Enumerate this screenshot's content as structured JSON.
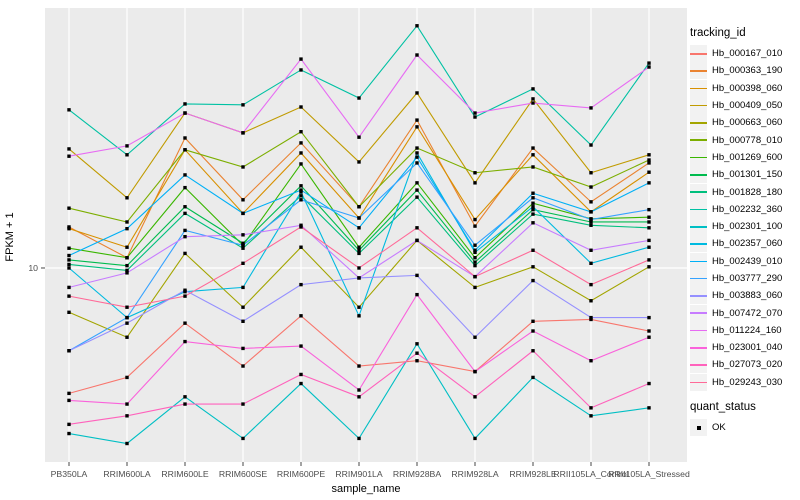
{
  "chart_data": {
    "type": "line",
    "title": "",
    "xlabel": "sample_name",
    "ylabel": "FPKM + 1",
    "y_scale": "log10",
    "ylim": [
      1.97,
      88.2
    ],
    "y_ticks": [
      10
    ],
    "y_tick_labels": [
      "10"
    ],
    "grid": true,
    "panel_bg": "#EBEBEB",
    "grid_color": "#FFFFFF",
    "point_marker": "square",
    "point_color": "#000000",
    "legend_position": "right",
    "legend_title": "tracking_id",
    "categories": [
      "PB350LA",
      "RRIM600LA",
      "RRIM600LE",
      "RRIM600SE",
      "RRIM600PE",
      "RRIM901LA",
      "RRIM928BA",
      "RRIM928LA",
      "RRIM928LE",
      "RRII105LA_Control",
      "RRII105LA_Stressed"
    ],
    "series": [
      {
        "name": "Hb_000167_010",
        "color": "#F8766D",
        "values": [
          3.5,
          4.0,
          6.3,
          4.4,
          6.7,
          4.4,
          4.6,
          4.2,
          6.4,
          6.5,
          5.9
        ]
      },
      {
        "name": "Hb_000363_190",
        "color": "#EA8331",
        "values": [
          14.1,
          10.9,
          29.7,
          17.7,
          28.5,
          16.7,
          34.5,
          14.2,
          27.3,
          17.4,
          24.1
        ]
      },
      {
        "name": "Hb_000398_060",
        "color": "#D89000",
        "values": [
          13.9,
          11.9,
          26.9,
          15.8,
          26.2,
          15.2,
          32.6,
          15.0,
          25.8,
          16.0,
          22.3
        ]
      },
      {
        "name": "Hb_000409_050",
        "color": "#C09B00",
        "values": [
          27.1,
          18.0,
          36.6,
          31.0,
          38.5,
          24.3,
          43.3,
          20.4,
          41.2,
          22.2,
          25.8
        ]
      },
      {
        "name": "Hb_000663_060",
        "color": "#A3A500",
        "values": [
          6.9,
          5.6,
          11.3,
          7.2,
          11.9,
          7.2,
          12.6,
          8.5,
          10.1,
          7.6,
          10.1
        ]
      },
      {
        "name": "Hb_000778_010",
        "color": "#7CAE00",
        "values": [
          16.5,
          14.7,
          26.9,
          23.3,
          31.3,
          16.7,
          27.3,
          22.2,
          23.3,
          19.7,
          24.7
        ]
      },
      {
        "name": "Hb_001269_600",
        "color": "#39B600",
        "values": [
          11.8,
          10.9,
          19.6,
          12.1,
          23.9,
          11.9,
          20.4,
          10.9,
          17.2,
          15.1,
          15.3
        ]
      },
      {
        "name": "Hb_001301_150",
        "color": "#00BB4E",
        "values": [
          10.7,
          10.2,
          16.7,
          12.3,
          19.9,
          11.6,
          19.2,
          10.5,
          16.3,
          14.7,
          14.7
        ]
      },
      {
        "name": "Hb_001828_180",
        "color": "#00BF7D",
        "values": [
          10.3,
          9.8,
          15.8,
          11.8,
          18.3,
          11.3,
          18.1,
          10.2,
          15.7,
          14.3,
          14.0
        ]
      },
      {
        "name": "Hb_002232_360",
        "color": "#00C1A3",
        "values": [
          37.6,
          25.8,
          39.5,
          39.2,
          52.5,
          41.5,
          76.0,
          35.4,
          44.8,
          28.0,
          55.6
        ]
      },
      {
        "name": "Hb_002301_100",
        "color": "#00BFC4",
        "values": [
          2.5,
          2.3,
          3.4,
          2.4,
          3.8,
          2.4,
          5.3,
          2.4,
          4.0,
          2.9,
          3.1
        ]
      },
      {
        "name": "Hb_002357_060",
        "color": "#00BAE0",
        "values": [
          10.0,
          6.6,
          8.2,
          8.5,
          18.9,
          6.7,
          26.2,
          11.4,
          16.7,
          10.4,
          11.9
        ]
      },
      {
        "name": "Hb_002439_010",
        "color": "#00B0F6",
        "values": [
          11.1,
          13.9,
          21.8,
          15.8,
          19.2,
          14.0,
          25.3,
          11.6,
          18.7,
          16.0,
          20.4
        ]
      },
      {
        "name": "Hb_003777_290",
        "color": "#35A2FF",
        "values": [
          5.0,
          6.6,
          13.7,
          12.1,
          17.7,
          15.2,
          24.1,
          12.1,
          18.0,
          15.0,
          16.3
        ]
      },
      {
        "name": "Hb_003883_060",
        "color": "#9590FF",
        "values": [
          5.0,
          6.3,
          8.3,
          6.4,
          8.7,
          9.2,
          9.4,
          5.6,
          9.0,
          6.6,
          6.6
        ]
      },
      {
        "name": "Hb_007472_070",
        "color": "#C77CFF",
        "values": [
          8.5,
          9.6,
          13.0,
          13.2,
          14.3,
          9.2,
          12.6,
          9.3,
          14.6,
          11.6,
          12.6
        ]
      },
      {
        "name": "Hb_011224_160",
        "color": "#E76BF3",
        "values": [
          25.5,
          27.8,
          36.6,
          31.0,
          57.5,
          29.9,
          59.5,
          36.6,
          39.8,
          38.2,
          53.8
        ]
      },
      {
        "name": "Hb_023001_040",
        "color": "#FA62DB",
        "values": [
          3.3,
          3.2,
          5.4,
          5.1,
          5.2,
          3.6,
          8.0,
          4.2,
          5.9,
          4.6,
          5.6
        ]
      },
      {
        "name": "Hb_027073_020",
        "color": "#FF62BC",
        "values": [
          2.7,
          2.9,
          3.2,
          3.2,
          4.1,
          3.4,
          4.9,
          3.4,
          5.0,
          3.1,
          3.8
        ]
      },
      {
        "name": "Hb_029243_030",
        "color": "#FF6A98",
        "values": [
          7.9,
          7.2,
          7.9,
          10.4,
          14.1,
          10.0,
          14.0,
          9.3,
          11.6,
          8.7,
          10.7
        ]
      }
    ],
    "legend2_title": "quant_status",
    "legend2_items": [
      {
        "label": "OK",
        "marker": "black-square"
      }
    ]
  }
}
